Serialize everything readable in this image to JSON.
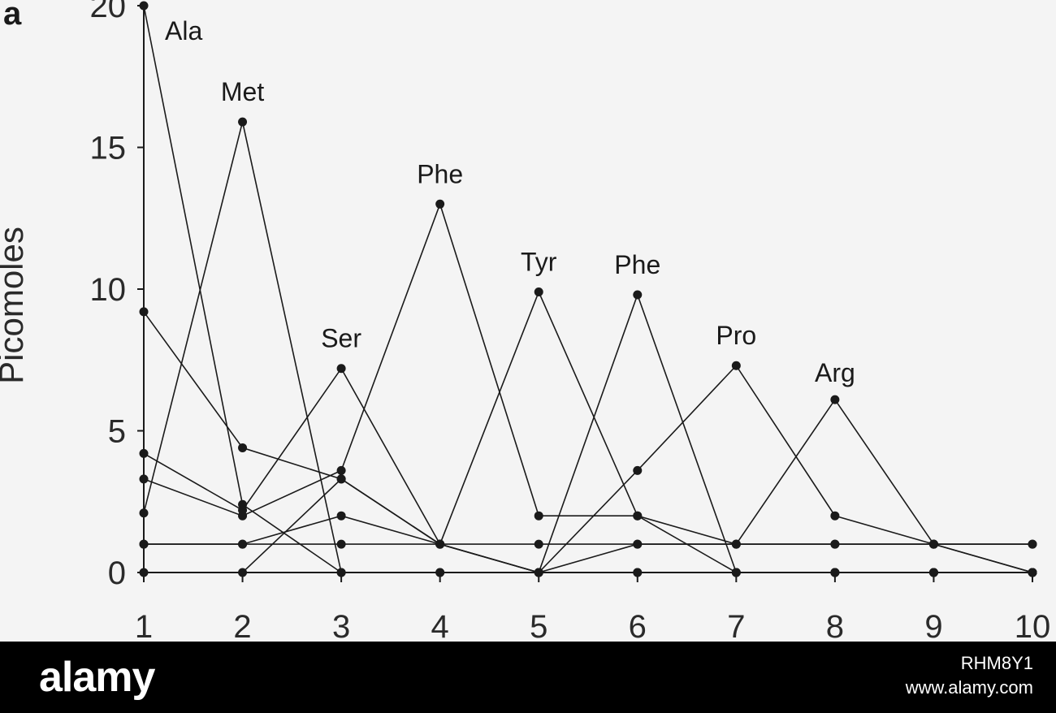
{
  "chart_data": {
    "type": "line",
    "panel_label": "a",
    "ylabel": "Picomoles",
    "xlabel": "",
    "x": [
      1,
      2,
      3,
      4,
      5,
      6,
      7,
      8,
      9,
      10
    ],
    "xlim": [
      1,
      10
    ],
    "ylim": [
      0,
      20
    ],
    "yticks": [
      0,
      5,
      10,
      15,
      20
    ],
    "xticks": [
      1,
      2,
      3,
      4,
      5,
      6,
      7,
      8,
      9,
      10
    ],
    "grid": false,
    "line_color": "#1a1a1a",
    "series": [
      {
        "name": "Ala",
        "values": [
          20,
          2.4,
          0,
          0,
          0,
          0,
          0,
          0,
          0,
          0
        ]
      },
      {
        "name": "Met",
        "values": [
          2.1,
          15.9,
          0,
          0,
          0,
          0,
          0,
          0,
          0,
          0
        ]
      },
      {
        "name": "Ser",
        "values": [
          4.2,
          2.2,
          7.2,
          1.0,
          1.0,
          1.0,
          1.0,
          1.0,
          1.0,
          1.0
        ]
      },
      {
        "name": "Phe",
        "values": [
          3.3,
          2.0,
          3.6,
          13.0,
          2.0,
          2.0,
          1.0,
          1.0,
          1.0,
          1.0
        ]
      },
      {
        "name": "Tyr",
        "values": [
          9.2,
          4.4,
          3.3,
          1.0,
          9.9,
          2.0,
          0,
          0,
          0,
          0
        ]
      },
      {
        "name": "Phe",
        "values": [
          0,
          0,
          3.3,
          1.0,
          0,
          9.8,
          0,
          0,
          0,
          0
        ]
      },
      {
        "name": "Pro",
        "values": [
          1.0,
          1.0,
          2.0,
          1.0,
          0,
          3.6,
          7.3,
          2.0,
          1.0,
          0
        ]
      },
      {
        "name": "Arg",
        "values": [
          1.0,
          1.0,
          1.0,
          1.0,
          0,
          1.0,
          1.0,
          6.1,
          1.0,
          0
        ]
      }
    ],
    "peak_labels": [
      {
        "text": "Ala",
        "x": 1,
        "y": 20
      },
      {
        "text": "Met",
        "x": 2,
        "y": 15.9
      },
      {
        "text": "Ser",
        "x": 3,
        "y": 7.2
      },
      {
        "text": "Phe",
        "x": 4,
        "y": 13.0
      },
      {
        "text": "Tyr",
        "x": 5,
        "y": 9.9
      },
      {
        "text": "Phe",
        "x": 6,
        "y": 9.8
      },
      {
        "text": "Pro",
        "x": 7,
        "y": 7.3
      },
      {
        "text": "Arg",
        "x": 8,
        "y": 6.1
      }
    ]
  },
  "footer": {
    "logo_text": "alamy",
    "image_id": "RHM8Y1",
    "site": "www.alamy.com",
    "background": "#000000"
  }
}
